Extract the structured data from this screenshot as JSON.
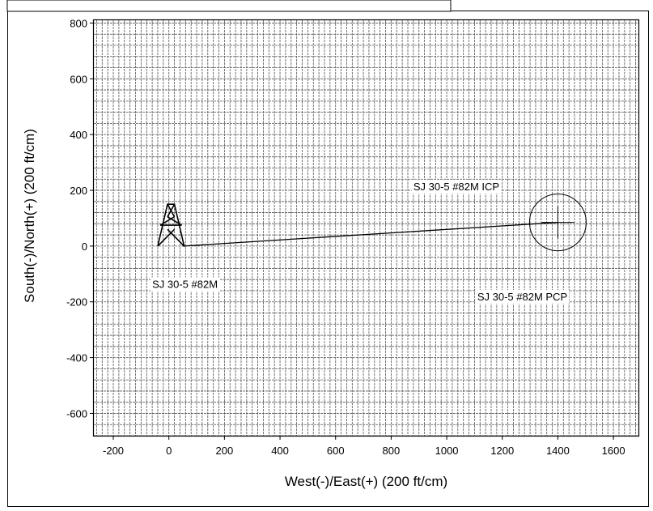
{
  "chart_data": {
    "type": "line",
    "title": "",
    "xlabel": "West(-)/East(+) (200 ft/cm)",
    "ylabel": "South(-)/North(+) (200 ft/cm)",
    "xlim": [
      -270,
      1690
    ],
    "ylim": [
      -680,
      810
    ],
    "xticks": [
      -200,
      0,
      200,
      400,
      600,
      800,
      1000,
      1200,
      1400,
      1600
    ],
    "yticks": [
      800,
      600,
      400,
      200,
      0,
      -200,
      -400,
      -600
    ],
    "grid": true,
    "series": [
      {
        "x": [
          50,
          1400
        ],
        "y": [
          0,
          85
        ]
      }
    ],
    "annotations": [
      {
        "text": "SJ 30-5 #82M",
        "x": -60,
        "y": -150
      },
      {
        "text": "SJ 30-5 #82M ICP",
        "x": 880,
        "y": 200
      },
      {
        "text": "SJ 30-5 #82M PCP",
        "x": 1110,
        "y": -195
      }
    ],
    "target": {
      "x": 1400,
      "y": 85
    },
    "rig_icon": "derrick-icon"
  }
}
